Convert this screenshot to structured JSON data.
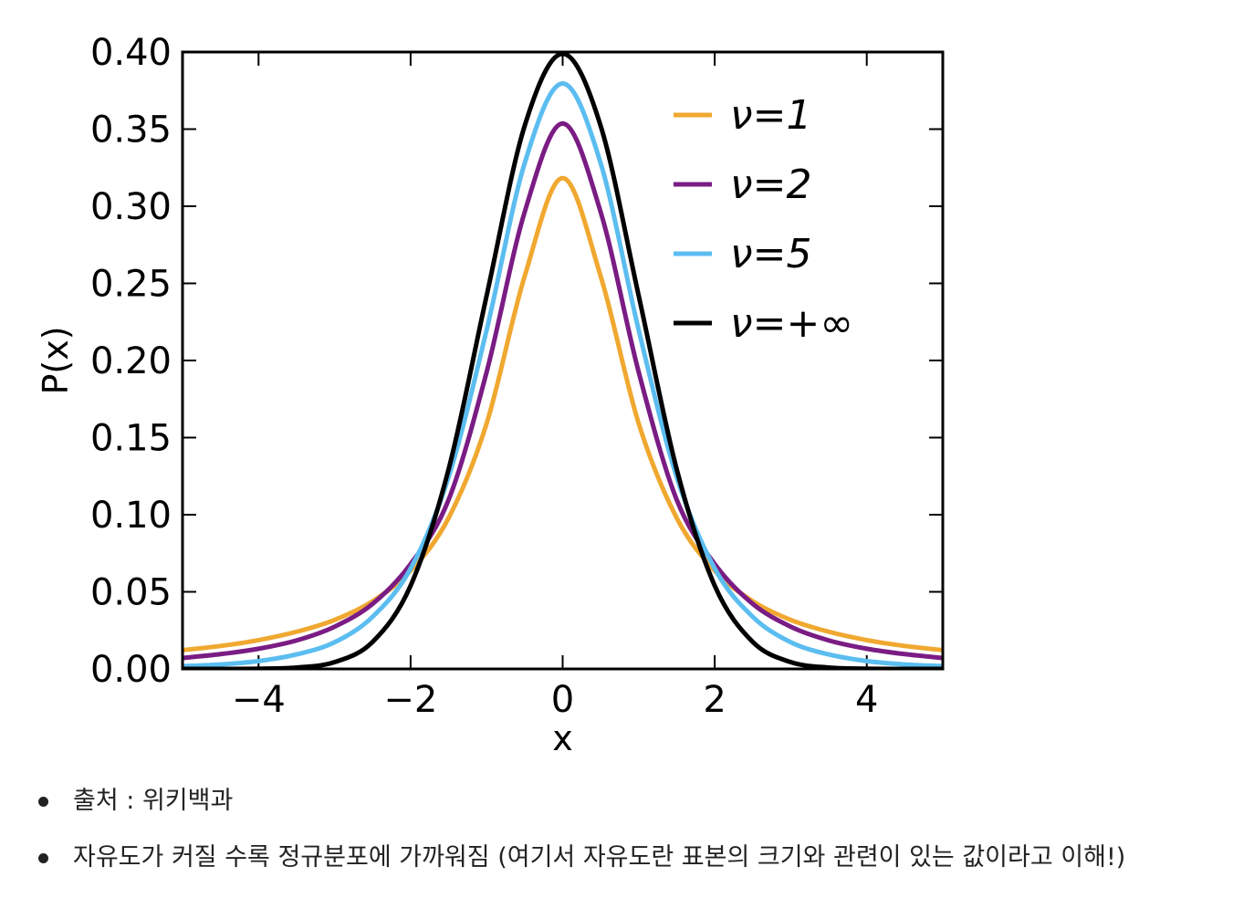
{
  "chart_data": {
    "type": "line",
    "title": "",
    "xlabel": "x",
    "ylabel": "P(x)",
    "xlim": [
      -5,
      5
    ],
    "ylim": [
      0,
      0.4
    ],
    "xticks": [
      -4,
      -2,
      0,
      2,
      4
    ],
    "xtick_labels": [
      "−4",
      "−2",
      "0",
      "2",
      "4"
    ],
    "yticks": [
      0.0,
      0.05,
      0.1,
      0.15,
      0.2,
      0.25,
      0.3,
      0.35,
      0.4
    ],
    "ytick_labels": [
      "0.00",
      "0.05",
      "0.10",
      "0.15",
      "0.20",
      "0.25",
      "0.30",
      "0.35",
      "0.40"
    ],
    "grid": false,
    "legend_position": "top-right",
    "x": [
      -5,
      -4.5,
      -4,
      -3.5,
      -3,
      -2.5,
      -2,
      -1.5,
      -1,
      -0.5,
      0,
      0.5,
      1,
      1.5,
      2,
      2.5,
      3,
      3.5,
      4,
      4.5,
      5
    ],
    "series": [
      {
        "name": "ν=1",
        "color": "#f0a830",
        "values": [
          0.0122,
          0.0149,
          0.0187,
          0.0241,
          0.0318,
          0.0439,
          0.0637,
          0.0979,
          0.1592,
          0.2546,
          0.3183,
          0.2546,
          0.1592,
          0.0979,
          0.0637,
          0.0439,
          0.0318,
          0.0241,
          0.0187,
          0.0149,
          0.0122
        ]
      },
      {
        "name": "ν=2",
        "color": "#7a1c84",
        "values": [
          0.0071,
          0.0096,
          0.0131,
          0.0185,
          0.0274,
          0.0422,
          0.068,
          0.1097,
          0.1925,
          0.2962,
          0.3536,
          0.2962,
          0.1925,
          0.1097,
          0.068,
          0.0422,
          0.0274,
          0.0185,
          0.0131,
          0.0096,
          0.0071
        ]
      },
      {
        "name": "ν=5",
        "color": "#5bbdf0",
        "values": [
          0.0018,
          0.0029,
          0.0051,
          0.0094,
          0.0173,
          0.0338,
          0.0651,
          0.1245,
          0.2197,
          0.3279,
          0.3796,
          0.3279,
          0.2197,
          0.1245,
          0.0651,
          0.0338,
          0.0173,
          0.0094,
          0.0051,
          0.0029,
          0.0018
        ]
      },
      {
        "name": "ν=+∞",
        "color": "#000000",
        "values": [
          1.5e-06,
          1.6e-05,
          0.0001338,
          0.000873,
          0.004432,
          0.01753,
          0.05399,
          0.1295,
          0.242,
          0.3521,
          0.3989,
          0.3521,
          0.242,
          0.1295,
          0.05399,
          0.01753,
          0.004432,
          0.000873,
          0.0001338,
          1.6e-05,
          1.5e-06
        ]
      }
    ]
  },
  "notes": {
    "items": [
      "출처 : 위키백과",
      "자유도가 커질 수록 정규분포에 가까워짐 (여기서 자유도란 표본의 크기와 관련이 있는 값이라고 이해!)"
    ]
  }
}
